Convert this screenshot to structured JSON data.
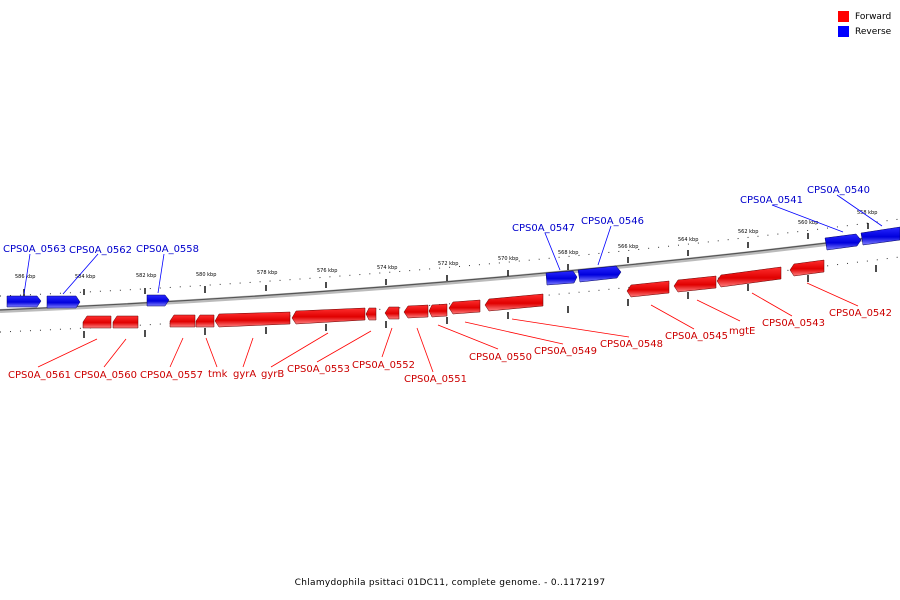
{
  "legend": {
    "forward_label": "Forward",
    "reverse_label": "Reverse",
    "forward_color": "#ff0000",
    "reverse_color": "#0000ff"
  },
  "caption": "Chlamydophila psittaci 01DC11, complete genome. - 0..1172197",
  "ruler": {
    "labels": [
      "586 kbp",
      "584 kbp",
      "582 kbp",
      "580 kbp",
      "578 kbp",
      "576 kbp",
      "574 kbp",
      "572 kbp",
      "570 kbp",
      "568 kbp",
      "566 kbp",
      "564 kbp",
      "562 kbp",
      "560 kbp",
      "558 kbp"
    ]
  },
  "reverse_genes": [
    "CPS0A_0563",
    "CPS0A_0562",
    "CPS0A_0558",
    "CPS0A_0547",
    "CPS0A_0546",
    "CPS0A_0541",
    "CPS0A_0540"
  ],
  "forward_genes": [
    "CPS0A_0561",
    "CPS0A_0560",
    "CPS0A_0557",
    "tmk",
    "gyrA",
    "gyrB",
    "CPS0A_0553",
    "CPS0A_0552",
    "CPS0A_0551",
    "CPS0A_0550",
    "CPS0A_0549",
    "CPS0A_0548",
    "CPS0A_0545",
    "mgtE",
    "CPS0A_0543",
    "CPS0A_0542"
  ]
}
